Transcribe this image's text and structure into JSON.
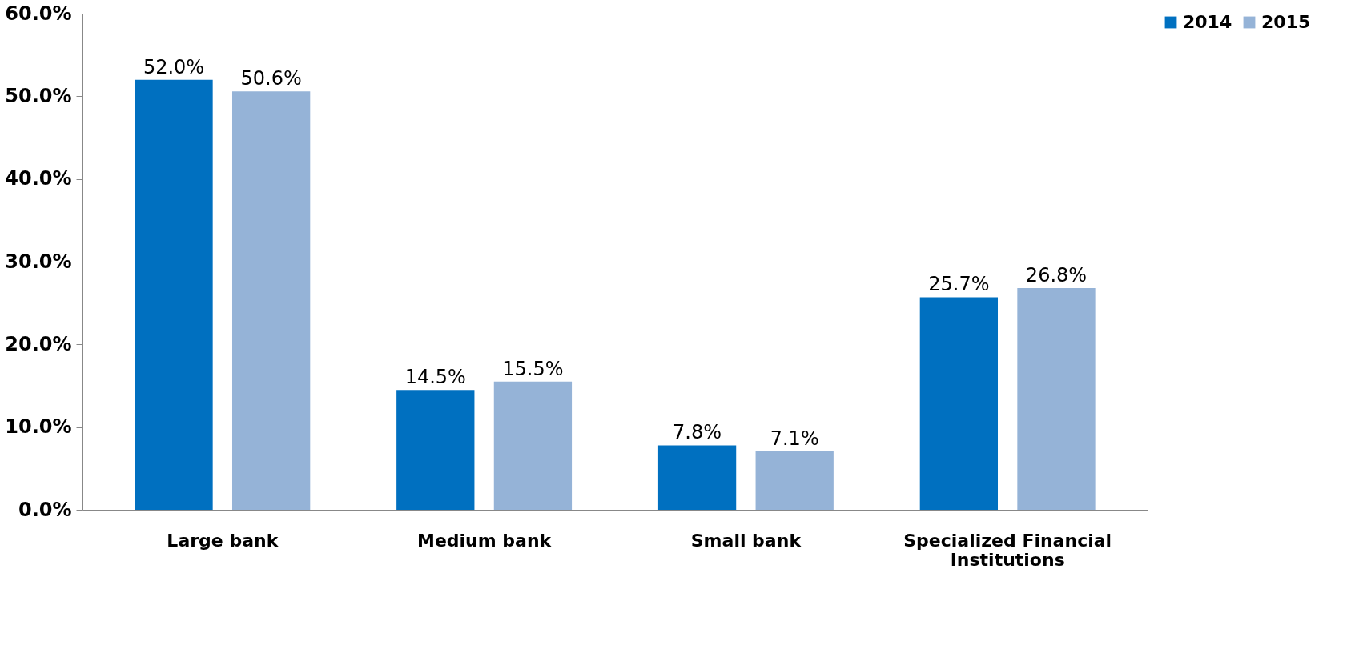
{
  "chart_data": {
    "type": "bar",
    "categories": [
      "Large bank",
      "Medium bank",
      "Small bank",
      "Specialized Financial Institutions"
    ],
    "series": [
      {
        "name": "2014",
        "color": "#0070c0",
        "values": [
          52.0,
          14.5,
          7.8,
          25.7
        ],
        "value_labels": [
          "52.0%",
          "14.5%",
          "7.8%",
          "25.7%"
        ]
      },
      {
        "name": "2015",
        "color": "#95b3d7",
        "values": [
          50.6,
          15.5,
          7.1,
          26.8
        ],
        "value_labels": [
          "50.6%",
          "15.5%",
          "7.1%",
          "26.8%"
        ]
      }
    ],
    "ylim": [
      0,
      60
    ],
    "yticks": [
      {
        "value": 0,
        "label": "0.0%"
      },
      {
        "value": 10,
        "label": "10.0%"
      },
      {
        "value": 20,
        "label": "20.0%"
      },
      {
        "value": 30,
        "label": "30.0%"
      },
      {
        "value": 40,
        "label": "40.0%"
      },
      {
        "value": 50,
        "label": "50.0%"
      },
      {
        "value": 60,
        "label": "60.0%"
      }
    ],
    "grid": false,
    "legend": "right"
  }
}
